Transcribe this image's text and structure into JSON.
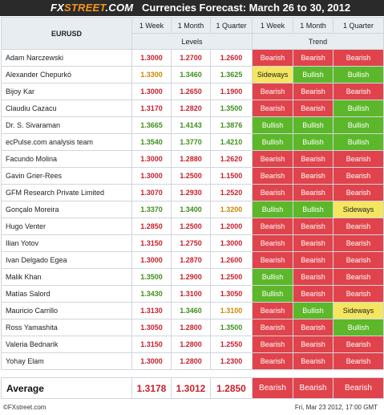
{
  "header": {
    "logo_fx": "FX",
    "logo_street": "STREET",
    "logo_com": ".COM",
    "title": "Currencies Forecast: March 26 to 30, 2012"
  },
  "table": {
    "pair": "EURUSD",
    "period_headers": [
      "1 Week",
      "1 Month",
      "1 Quarter",
      "1 Week",
      "1 Month",
      "1 Quarter"
    ],
    "levels_label": "Levels",
    "trend_label": "Trend",
    "rows": [
      {
        "name": "Adam Narczewski",
        "levels": [
          "1.3000",
          "1.2700",
          "1.2600"
        ],
        "level_colors": [
          "red",
          "red",
          "red"
        ],
        "trend": [
          "Bearish",
          "Bearish",
          "Bearish"
        ]
      },
      {
        "name": "Alexander Chepurkó",
        "levels": [
          "1.3300",
          "1.3460",
          "1.3625"
        ],
        "level_colors": [
          "org",
          "grn",
          "grn"
        ],
        "trend": [
          "Sideways",
          "Bullish",
          "Bullish"
        ]
      },
      {
        "name": "Bijoy Kar",
        "levels": [
          "1.3000",
          "1.2650",
          "1.1900"
        ],
        "level_colors": [
          "red",
          "red",
          "red"
        ],
        "trend": [
          "Bearish",
          "Bearish",
          "Bearish"
        ]
      },
      {
        "name": "Claudiu Cazacu",
        "levels": [
          "1.3170",
          "1.2820",
          "1.3500"
        ],
        "level_colors": [
          "red",
          "red",
          "grn"
        ],
        "trend": [
          "Bearish",
          "Bearish",
          "Bullish"
        ]
      },
      {
        "name": "Dr. S. Sivaraman",
        "levels": [
          "1.3665",
          "1.4143",
          "1.3876"
        ],
        "level_colors": [
          "grn",
          "grn",
          "grn"
        ],
        "trend": [
          "Bullish",
          "Bullish",
          "Bullish"
        ]
      },
      {
        "name": "ecPulse.com analysis team",
        "levels": [
          "1.3540",
          "1.3770",
          "1.4210"
        ],
        "level_colors": [
          "grn",
          "grn",
          "grn"
        ],
        "trend": [
          "Bullish",
          "Bullish",
          "Bullish"
        ]
      },
      {
        "name": "Facundo Molina",
        "levels": [
          "1.3000",
          "1.2880",
          "1.2620"
        ],
        "level_colors": [
          "red",
          "red",
          "red"
        ],
        "trend": [
          "Bearish",
          "Bearish",
          "Bearish"
        ]
      },
      {
        "name": "Gavin Grier-Rees",
        "levels": [
          "1.3000",
          "1.2500",
          "1.1500"
        ],
        "level_colors": [
          "red",
          "red",
          "red"
        ],
        "trend": [
          "Bearish",
          "Bearish",
          "Bearish"
        ]
      },
      {
        "name": "GFM Research Private Limited",
        "levels": [
          "1.3070",
          "1.2930",
          "1.2520"
        ],
        "level_colors": [
          "red",
          "red",
          "red"
        ],
        "trend": [
          "Bearish",
          "Bearish",
          "Bearish"
        ]
      },
      {
        "name": "Gonçalo Moreira",
        "levels": [
          "1.3370",
          "1.3400",
          "1.3200"
        ],
        "level_colors": [
          "grn",
          "grn",
          "org"
        ],
        "trend": [
          "Bullish",
          "Bullish",
          "Sideways"
        ]
      },
      {
        "name": "Hugo Venter",
        "levels": [
          "1.2850",
          "1.2500",
          "1.2000"
        ],
        "level_colors": [
          "red",
          "red",
          "red"
        ],
        "trend": [
          "Bearish",
          "Bearish",
          "Bearish"
        ]
      },
      {
        "name": "Ilian Yotov",
        "levels": [
          "1.3150",
          "1.2750",
          "1.3000"
        ],
        "level_colors": [
          "red",
          "red",
          "red"
        ],
        "trend": [
          "Bearish",
          "Bearish",
          "Bearish"
        ]
      },
      {
        "name": "Ivan Delgado Egea",
        "levels": [
          "1.3000",
          "1.2870",
          "1.2600"
        ],
        "level_colors": [
          "red",
          "red",
          "red"
        ],
        "trend": [
          "Bearish",
          "Bearish",
          "Bearish"
        ]
      },
      {
        "name": "Malik Khan",
        "levels": [
          "1.3500",
          "1.2900",
          "1.2500"
        ],
        "level_colors": [
          "grn",
          "red",
          "red"
        ],
        "trend": [
          "Bullish",
          "Bearish",
          "Bearish"
        ]
      },
      {
        "name": "Matías Salord",
        "levels": [
          "1.3430",
          "1.3100",
          "1.3050"
        ],
        "level_colors": [
          "grn",
          "red",
          "red"
        ],
        "trend": [
          "Bullish",
          "Bearish",
          "Bearish"
        ]
      },
      {
        "name": "Mauricio Carrillo",
        "levels": [
          "1.3130",
          "1.3460",
          "1.3100"
        ],
        "level_colors": [
          "red",
          "grn",
          "org"
        ],
        "trend": [
          "Bearish",
          "Bullish",
          "Sideways"
        ]
      },
      {
        "name": "Ross Yamashita",
        "levels": [
          "1.3050",
          "1.2800",
          "1.3500"
        ],
        "level_colors": [
          "red",
          "red",
          "grn"
        ],
        "trend": [
          "Bearish",
          "Bearish",
          "Bullish"
        ]
      },
      {
        "name": "Valeria Bednarik",
        "levels": [
          "1.3150",
          "1.2800",
          "1.2550"
        ],
        "level_colors": [
          "red",
          "red",
          "red"
        ],
        "trend": [
          "Bearish",
          "Bearish",
          "Bearish"
        ]
      },
      {
        "name": "Yohay Elam",
        "levels": [
          "1.3000",
          "1.2800",
          "1.2300"
        ],
        "level_colors": [
          "red",
          "red",
          "red"
        ],
        "trend": [
          "Bearish",
          "Bearish",
          "Bearish"
        ]
      }
    ]
  },
  "average": {
    "label": "Average",
    "levels": [
      "1.3178",
      "1.3012",
      "1.2850"
    ],
    "trend": [
      "Bearish",
      "Bearish",
      "Bearish"
    ]
  },
  "footer": {
    "copyright": "©FXstreet.com",
    "timestamp": "Fri, Mar 23 2012, 17:00 GMT"
  },
  "colors": {
    "bearish": "#e0434b",
    "bullish": "#5cb82a",
    "sideways": "#f4e661",
    "header_bg": "#2a2a2a",
    "logo_accent": "#f7941d"
  }
}
